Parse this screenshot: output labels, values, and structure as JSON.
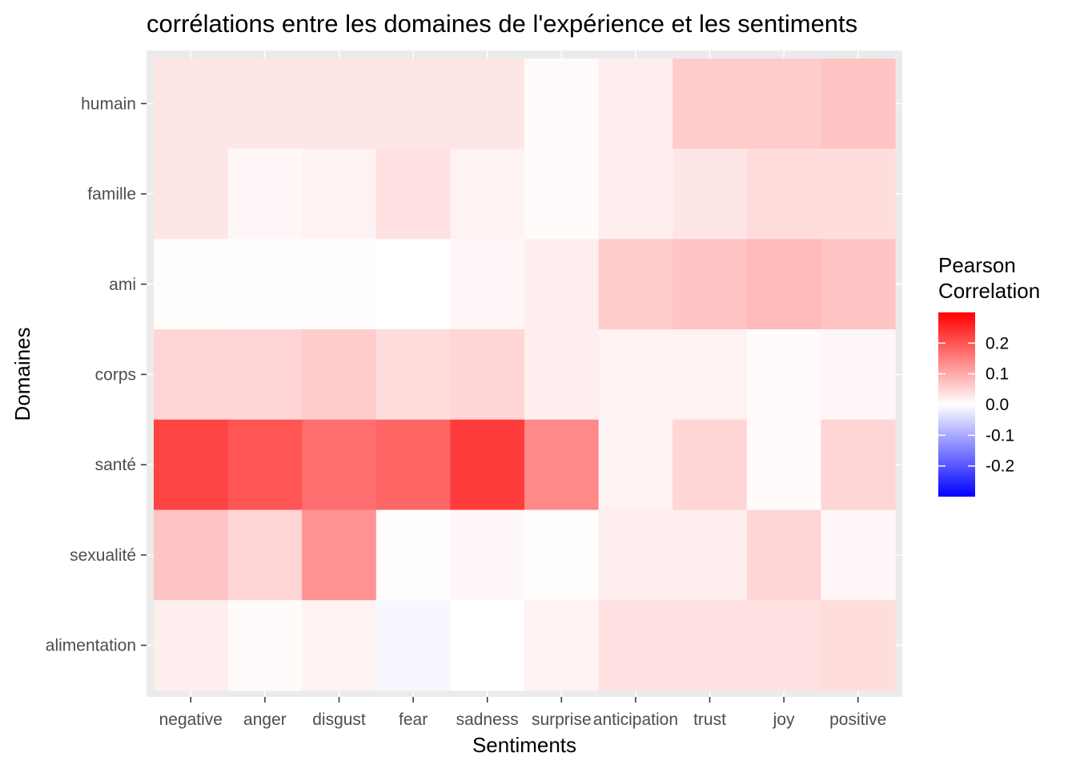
{
  "chart_data": {
    "type": "heatmap",
    "title": "corrélations entre les domaines de l'expérience et les sentiments",
    "xlabel": "Sentiments",
    "ylabel": "Domaines",
    "x_categories": [
      "negative",
      "anger",
      "disgust",
      "fear",
      "sadness",
      "surprise",
      "anticipation",
      "trust",
      "joy",
      "positive"
    ],
    "y_categories": [
      "humain",
      "famille",
      "ami",
      "corps",
      "santé",
      "sexualité",
      "alimentation"
    ],
    "values": [
      [
        0.03,
        0.03,
        0.03,
        0.03,
        0.03,
        0.005,
        0.02,
        0.06,
        0.06,
        0.07
      ],
      [
        0.03,
        0.01,
        0.015,
        0.035,
        0.015,
        0.005,
        0.02,
        0.03,
        0.04,
        0.04
      ],
      [
        0.003,
        0.002,
        0.002,
        0.0,
        0.01,
        0.02,
        0.06,
        0.07,
        0.08,
        0.07
      ],
      [
        0.05,
        0.05,
        0.06,
        0.04,
        0.05,
        0.02,
        0.015,
        0.015,
        0.005,
        0.01
      ],
      [
        0.22,
        0.2,
        0.17,
        0.18,
        0.23,
        0.14,
        0.015,
        0.05,
        0.005,
        0.05
      ],
      [
        0.07,
        0.05,
        0.13,
        0.003,
        0.01,
        0.004,
        0.02,
        0.02,
        0.05,
        0.01
      ],
      [
        0.02,
        0.005,
        0.015,
        -0.01,
        0.0,
        0.015,
        0.035,
        0.035,
        0.035,
        0.04
      ]
    ],
    "legend": {
      "title_lines": [
        "Pearson",
        "Correlation"
      ],
      "breaks": [
        "0.2",
        "0.1",
        "0.0",
        "-0.1",
        "-0.2"
      ],
      "break_values": [
        0.2,
        0.1,
        0.0,
        -0.1,
        -0.2
      ],
      "limits": [
        -0.3,
        0.3
      ],
      "low_color": "#0000ff",
      "mid_color": "#ffffff",
      "high_color": "#ff0000",
      "placement": "right"
    },
    "panel_background": "#ebebeb",
    "grid": true
  }
}
